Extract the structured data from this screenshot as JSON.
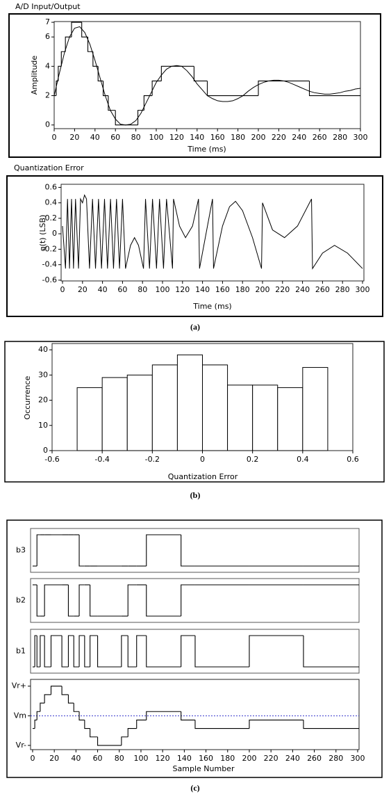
{
  "captions": [
    "(a)",
    "(b)",
    "(c)"
  ],
  "chart_data": [
    {
      "type": "line",
      "title": "A/D Input/Output",
      "x_label": "Time (ms)",
      "y_label": "Amplitude",
      "x": [
        0,
        5,
        10,
        15,
        20,
        25,
        30,
        35,
        40,
        45,
        50,
        55,
        60,
        65,
        70,
        75,
        80,
        85,
        90,
        95,
        100,
        105,
        110,
        115,
        120,
        125,
        130,
        135,
        140,
        145,
        150,
        155,
        160,
        165,
        170,
        175,
        180,
        185,
        190,
        195,
        200,
        205,
        210,
        215,
        220,
        225,
        230,
        235,
        240,
        245,
        250,
        255,
        260,
        265,
        270,
        275,
        280,
        285,
        290,
        295,
        300
      ],
      "values": [
        2.0,
        3.5,
        4.9,
        6.0,
        6.6,
        6.7,
        6.3,
        5.5,
        4.4,
        3.2,
        2.0,
        1.0,
        0.4,
        0.05,
        0,
        0.05,
        0.3,
        0.8,
        1.5,
        2.2,
        2.9,
        3.4,
        3.8,
        4.0,
        4.05,
        4.0,
        3.7,
        3.3,
        2.8,
        2.4,
        2.0,
        1.8,
        1.65,
        1.6,
        1.6,
        1.65,
        1.8,
        2.0,
        2.3,
        2.55,
        2.75,
        2.9,
        3.0,
        3.05,
        3.05,
        3.0,
        2.9,
        2.75,
        2.6,
        2.45,
        2.3,
        2.2,
        2.15,
        2.1,
        2.1,
        2.15,
        2.2,
        2.3,
        2.35,
        2.45,
        2.5
      ],
      "step_x": [
        0,
        2,
        4,
        7,
        11,
        17,
        27,
        33,
        38,
        43,
        48,
        53,
        60,
        82,
        88,
        96,
        105,
        137,
        150,
        200,
        250
      ],
      "step_values": [
        2,
        3,
        4,
        5,
        6,
        7,
        6,
        5,
        4,
        3,
        2,
        1,
        0,
        1,
        2,
        3,
        4,
        3,
        2,
        3,
        2
      ],
      "xlim": [
        0,
        300
      ],
      "xticks": [
        0,
        20,
        40,
        60,
        80,
        100,
        120,
        140,
        160,
        180,
        200,
        220,
        240,
        260,
        280,
        300
      ],
      "ylim": [
        -0.25,
        7.05
      ],
      "yticks": [
        0,
        2,
        4,
        6,
        7
      ],
      "color": "#000000"
    },
    {
      "type": "line",
      "title": "Quantization Error",
      "x_label": "Time (ms)",
      "y_label": "q(t) (LSB)",
      "x": [
        0,
        3,
        5,
        7,
        9,
        11,
        13,
        16,
        18,
        20,
        22,
        24,
        27,
        30,
        33,
        36,
        39,
        42,
        45,
        48,
        51,
        54,
        57,
        60,
        63,
        68,
        72,
        76,
        81,
        83,
        87,
        90,
        94,
        97,
        101,
        104,
        110,
        111,
        117,
        123,
        130,
        136,
        137,
        150,
        151,
        160,
        167,
        173,
        180,
        190,
        199,
        200,
        210,
        222,
        235,
        249,
        250,
        260,
        272,
        285,
        300
      ],
      "values": [
        0.1,
        -0.45,
        0.45,
        -0.45,
        0.45,
        -0.45,
        0.45,
        -0.45,
        0.45,
        0.4,
        0.5,
        0.45,
        -0.45,
        0.45,
        -0.45,
        0.45,
        -0.45,
        0.45,
        -0.45,
        0.45,
        -0.45,
        0.45,
        -0.45,
        0.45,
        -0.45,
        -0.15,
        -0.05,
        -0.15,
        -0.45,
        0.45,
        -0.45,
        0.45,
        -0.45,
        0.45,
        -0.45,
        0.45,
        -0.45,
        0.45,
        0.1,
        -0.05,
        0.1,
        0.45,
        -0.45,
        0.45,
        -0.45,
        0.1,
        0.35,
        0.42,
        0.3,
        -0.05,
        -0.45,
        0.4,
        0.05,
        -0.05,
        0.1,
        0.45,
        -0.45,
        -0.25,
        -0.15,
        -0.25,
        -0.45
      ],
      "xlim": [
        -1.4,
        301.4
      ],
      "xticks": [
        0,
        20,
        40,
        60,
        80,
        100,
        120,
        140,
        160,
        180,
        200,
        220,
        240,
        260,
        280,
        300
      ],
      "ylim": [
        -0.61,
        0.64
      ],
      "yticks": [
        -0.6,
        -0.4,
        -0.2,
        0,
        0.2,
        0.4,
        0.6
      ],
      "color": "#000000"
    },
    {
      "type": "histogram",
      "x_label": "Quantization Error",
      "y_label": "Occurrence",
      "bins": [
        -0.5,
        -0.4,
        -0.3,
        -0.2,
        -0.1,
        0,
        0.1,
        0.2,
        0.3,
        0.4,
        0.5
      ],
      "values": [
        25,
        29,
        30,
        34,
        38,
        34,
        26,
        26,
        25,
        33
      ],
      "xlim": [
        -0.6,
        0.6
      ],
      "xticks": [
        -0.6,
        -0.4,
        -0.2,
        0,
        0.2,
        0.4,
        0.6
      ],
      "ylim": [
        0,
        42.5
      ],
      "yticks": [
        0,
        10,
        20,
        30,
        40
      ],
      "color": "#ffffff"
    },
    {
      "type": "digital",
      "x_label": "Sample Number",
      "x": [
        0,
        2,
        4,
        7,
        11,
        17,
        27,
        33,
        38,
        43,
        48,
        53,
        60,
        82,
        88,
        96,
        105,
        137,
        150,
        200,
        250
      ],
      "series": [
        {
          "name": "b3",
          "values": [
            0,
            0,
            1,
            1,
            1,
            1,
            1,
            1,
            1,
            0,
            0,
            0,
            0,
            0,
            0,
            0,
            1,
            0,
            0,
            0,
            0
          ]
        },
        {
          "name": "b2",
          "values": [
            1,
            1,
            0,
            0,
            1,
            1,
            1,
            0,
            0,
            1,
            1,
            0,
            0,
            0,
            1,
            1,
            0,
            1,
            1,
            1,
            1
          ]
        },
        {
          "name": "b1",
          "values": [
            0,
            1,
            0,
            1,
            0,
            1,
            0,
            1,
            0,
            1,
            0,
            1,
            0,
            1,
            0,
            1,
            0,
            1,
            0,
            1,
            0
          ]
        }
      ],
      "values": [
        2,
        3,
        4,
        5,
        6,
        7,
        6,
        5,
        4,
        3,
        2,
        1,
        0,
        1,
        2,
        3,
        4,
        3,
        2,
        3,
        2
      ],
      "xlim": [
        -1.9,
        301.3
      ],
      "xticks": [
        0,
        20,
        40,
        60,
        80,
        100,
        120,
        140,
        160,
        180,
        200,
        220,
        240,
        260,
        280,
        300
      ],
      "ylim": [
        -0.5,
        7.8
      ],
      "yticks": [
        {
          "value": 0,
          "label": "Vr-"
        },
        {
          "value": 3.5,
          "label": "Vm"
        },
        {
          "value": 7,
          "label": "Vr+"
        }
      ],
      "ref_line": {
        "value": 3.5,
        "color": "#3333cc"
      },
      "color": "#000000"
    }
  ]
}
